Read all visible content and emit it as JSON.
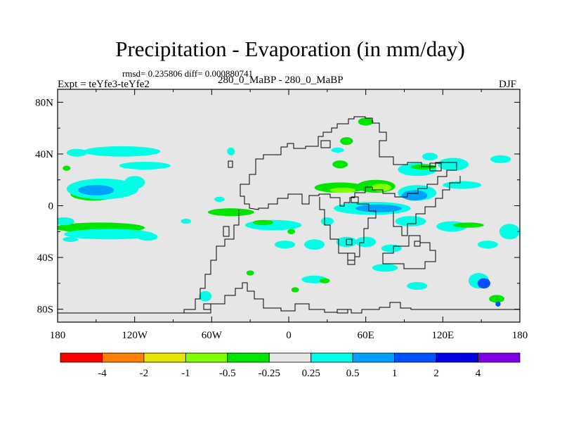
{
  "title": "Precipitation - Evaporation (in mm/day)",
  "stats": "rmsd= 0.235806 diff= 0.000880741",
  "experiment": "Expt = teYfe3-teYfe2",
  "center_label": "280_0_MaBP - 280_0_MaBP",
  "season": "DJF",
  "map": {
    "projection": "cylindrical equidistant",
    "lon_range": [
      -180,
      180
    ],
    "lat_range": [
      -90,
      90
    ],
    "background_color": "#e6e6e6",
    "lat_ticks": [
      {
        "value": 80,
        "label": "80N"
      },
      {
        "value": 40,
        "label": "40N"
      },
      {
        "value": 0,
        "label": "0"
      },
      {
        "value": -40,
        "label": "40S"
      },
      {
        "value": -80,
        "label": "80S"
      }
    ],
    "lon_ticks": [
      {
        "value": -180,
        "label": "180"
      },
      {
        "value": -120,
        "label": "120W"
      },
      {
        "value": -60,
        "label": "60W"
      },
      {
        "value": 0,
        "label": "0"
      },
      {
        "value": 60,
        "label": "60E"
      },
      {
        "value": 120,
        "label": "120E"
      },
      {
        "value": 180,
        "label": "180"
      }
    ]
  },
  "colorbar": {
    "colors": [
      "#ff0000",
      "#ff8000",
      "#e6e600",
      "#80ff00",
      "#00e600",
      "#e6e6e6",
      "#00ffe6",
      "#00a0ff",
      "#0050ff",
      "#0000e6",
      "#8000e6"
    ],
    "labels": [
      "-4",
      "-2",
      "-1",
      "-0.5",
      "-0.25",
      "0.25",
      "0.5",
      "1",
      "2",
      "4"
    ]
  },
  "chart_data": {
    "type": "heatmap",
    "variable": "Precipitation - Evaporation",
    "units": "mm/day",
    "levels": [
      -4,
      -2,
      -1,
      -0.5,
      -0.25,
      0.25,
      0.5,
      1,
      2,
      4
    ],
    "regions": [
      {
        "cls": 4,
        "lon": -152,
        "lat": 9,
        "dlon": 18,
        "dlat": 5
      },
      {
        "cls": 6,
        "lon": -145,
        "lat": 13,
        "dlon": 28,
        "dlat": 8
      },
      {
        "cls": 7,
        "lon": -150,
        "lat": 12,
        "dlon": 14,
        "dlat": 4
      },
      {
        "cls": 6,
        "lon": -120,
        "lat": 18,
        "dlon": 8,
        "dlat": 5
      },
      {
        "cls": 6,
        "lon": -130,
        "lat": 42,
        "dlon": 30,
        "dlat": 4
      },
      {
        "cls": 6,
        "lon": -112,
        "lat": 31,
        "dlon": 20,
        "dlat": 3
      },
      {
        "cls": 6,
        "lon": -165,
        "lat": 41,
        "dlon": 8,
        "dlat": 3
      },
      {
        "cls": 4,
        "lon": -173,
        "lat": 29,
        "dlon": 3,
        "dlat": 2
      },
      {
        "cls": 4,
        "lon": -147,
        "lat": -17,
        "dlon": 35,
        "dlat": 4
      },
      {
        "cls": 6,
        "lon": -140,
        "lat": -22,
        "dlon": 35,
        "dlat": 4
      },
      {
        "cls": 6,
        "lon": -175,
        "lat": -12,
        "dlon": 8,
        "dlat": 3
      },
      {
        "cls": 6,
        "lon": -110,
        "lat": -24,
        "dlon": 8,
        "dlat": 3
      },
      {
        "cls": 6,
        "lon": -170,
        "lat": -26,
        "dlon": 6,
        "dlat": 2
      },
      {
        "cls": 4,
        "lon": -45,
        "lat": -5,
        "dlon": 18,
        "dlat": 3
      },
      {
        "cls": 6,
        "lon": -80,
        "lat": -12,
        "dlon": 4,
        "dlat": 2
      },
      {
        "cls": 6,
        "lon": -54,
        "lat": 5,
        "dlon": 4,
        "dlat": 2
      },
      {
        "cls": 6,
        "lon": -45,
        "lat": 42,
        "dlon": 3,
        "dlat": 3
      },
      {
        "cls": 6,
        "lon": -12,
        "lat": -15,
        "dlon": 22,
        "dlat": 4
      },
      {
        "cls": 4,
        "lon": -20,
        "lat": -13,
        "dlon": 8,
        "dlat": 2
      },
      {
        "cls": 6,
        "lon": -3,
        "lat": -30,
        "dlon": 8,
        "dlat": 3
      },
      {
        "cls": 4,
        "lon": 2,
        "lat": -20,
        "dlon": 3,
        "dlat": 2
      },
      {
        "cls": 6,
        "lon": -65,
        "lat": -70,
        "dlon": 5,
        "dlat": 4
      },
      {
        "cls": 4,
        "lon": -30,
        "lat": -52,
        "dlon": 3,
        "dlat": 2
      },
      {
        "cls": 4,
        "lon": 5,
        "lat": -65,
        "dlon": 3,
        "dlat": 2
      },
      {
        "cls": 4,
        "lon": 40,
        "lat": 14,
        "dlon": 20,
        "dlat": 4
      },
      {
        "cls": 3,
        "lon": 42,
        "lat": 12,
        "dlon": 10,
        "dlat": 2
      },
      {
        "cls": 4,
        "lon": 68,
        "lat": 15,
        "dlon": 15,
        "dlat": 5
      },
      {
        "cls": 3,
        "lon": 72,
        "lat": 14,
        "dlon": 8,
        "dlat": 3
      },
      {
        "cls": 6,
        "lon": 65,
        "lat": -2,
        "dlon": 30,
        "dlat": 5
      },
      {
        "cls": 7,
        "lon": 70,
        "lat": -2,
        "dlon": 18,
        "dlat": 3
      },
      {
        "cls": 6,
        "lon": 100,
        "lat": 10,
        "dlon": 15,
        "dlat": 6
      },
      {
        "cls": 7,
        "lon": 98,
        "lat": 8,
        "dlon": 10,
        "dlat": 4
      },
      {
        "cls": 6,
        "lon": 95,
        "lat": -12,
        "dlon": 12,
        "dlat": 4
      },
      {
        "cls": 6,
        "lon": 60,
        "lat": -28,
        "dlon": 8,
        "dlat": 4
      },
      {
        "cls": 6,
        "lon": 80,
        "lat": -33,
        "dlon": 8,
        "dlat": 3
      },
      {
        "cls": 6,
        "lon": 45,
        "lat": -28,
        "dlon": 8,
        "dlat": 4
      },
      {
        "cls": 6,
        "lon": 20,
        "lat": -30,
        "dlon": 8,
        "dlat": 4
      },
      {
        "cls": 6,
        "lon": 127,
        "lat": -16,
        "dlon": 12,
        "dlat": 4
      },
      {
        "cls": 4,
        "lon": 140,
        "lat": -15,
        "dlon": 12,
        "dlat": 2
      },
      {
        "cls": 6,
        "lon": 172,
        "lat": -20,
        "dlon": 8,
        "dlat": 6
      },
      {
        "cls": 6,
        "lon": 155,
        "lat": -30,
        "dlon": 8,
        "dlat": 3
      },
      {
        "cls": 6,
        "lon": 100,
        "lat": 28,
        "dlon": 15,
        "dlat": 5
      },
      {
        "cls": 4,
        "lon": 105,
        "lat": 30,
        "dlon": 10,
        "dlat": 2
      },
      {
        "cls": 6,
        "lon": 128,
        "lat": 32,
        "dlon": 12,
        "dlat": 5
      },
      {
        "cls": 6,
        "lon": 135,
        "lat": 16,
        "dlon": 15,
        "dlat": 3
      },
      {
        "cls": 4,
        "lon": 60,
        "lat": 65,
        "dlon": 6,
        "dlat": 3
      },
      {
        "cls": 4,
        "lon": 45,
        "lat": 50,
        "dlon": 5,
        "dlat": 3
      },
      {
        "cls": 6,
        "lon": 38,
        "lat": 43,
        "dlon": 5,
        "dlat": 2
      },
      {
        "cls": 4,
        "lon": 40,
        "lat": 32,
        "dlon": 6,
        "dlat": 3
      },
      {
        "cls": 6,
        "lon": 110,
        "lat": 38,
        "dlon": 6,
        "dlat": 3
      },
      {
        "cls": 6,
        "lon": 165,
        "lat": 36,
        "dlon": 8,
        "dlat": 3
      },
      {
        "cls": 6,
        "lon": 75,
        "lat": -48,
        "dlon": 10,
        "dlat": 3
      },
      {
        "cls": 6,
        "lon": 20,
        "lat": -57,
        "dlon": 10,
        "dlat": 3
      },
      {
        "cls": 4,
        "lon": 28,
        "lat": -58,
        "dlon": 4,
        "dlat": 2
      },
      {
        "cls": 6,
        "lon": 148,
        "lat": -58,
        "dlon": 8,
        "dlat": 6
      },
      {
        "cls": 8,
        "lon": 152,
        "lat": -60,
        "dlon": 5,
        "dlat": 4
      },
      {
        "cls": 4,
        "lon": 162,
        "lat": -72,
        "dlon": 6,
        "dlat": 3
      },
      {
        "cls": 8,
        "lon": 163,
        "lat": -76,
        "dlon": 2,
        "dlat": 2
      },
      {
        "cls": 6,
        "lon": 100,
        "lat": -62,
        "dlon": 8,
        "dlat": 3
      },
      {
        "cls": 6,
        "lon": 30,
        "lat": -12,
        "dlon": 5,
        "dlat": 3
      }
    ]
  }
}
